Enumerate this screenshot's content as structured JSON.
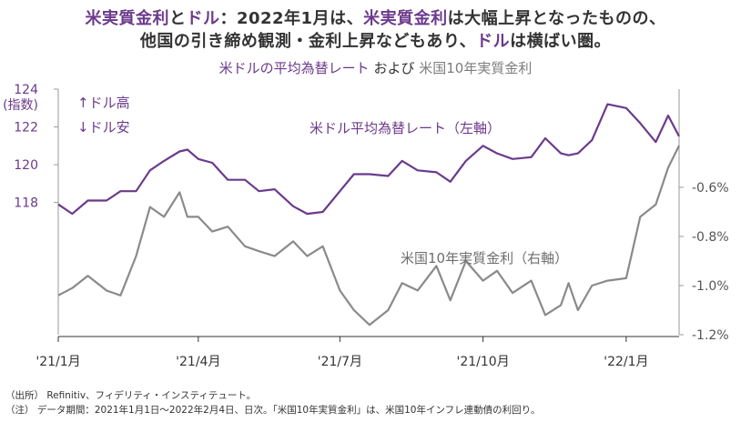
{
  "header": {
    "line1_a": "米実質金利",
    "line1_b": "と",
    "line1_c": "ドル",
    "line1_d": "：2022年1月は、",
    "line1_e": "米実質金利",
    "line1_f": "は大幅上昇となったものの、",
    "line2_a": "他国の引き締め観測・金利上昇などもあり、",
    "line2_b": "ドル",
    "line2_c": "は横ばい圏。"
  },
  "subtitle": {
    "part1": "米ドルの平均為替レート",
    "part2": " および ",
    "part3": "米国10年実質金利"
  },
  "chart_data": {
    "type": "line",
    "title": "",
    "left_axis": {
      "unit": "(指数)",
      "ticks": [
        118,
        120,
        122,
        124
      ],
      "range": [
        111,
        124
      ]
    },
    "right_axis": {
      "ticks": [
        "-0.6%",
        "-0.8%",
        "-1.0%",
        "-1.2%"
      ],
      "tick_values": [
        -0.6,
        -0.8,
        -1.0,
        -1.2
      ],
      "range": [
        -1.2,
        -0.2
      ]
    },
    "x_range": [
      "2021-01-01",
      "2022-02-04"
    ],
    "x_ticks": [
      {
        "label": "'21/1月",
        "date": "2021-01-01"
      },
      {
        "label": "'21/4月",
        "date": "2021-04-01"
      },
      {
        "label": "'21/7月",
        "date": "2021-07-01"
      },
      {
        "label": "'21/10月",
        "date": "2021-10-01"
      },
      {
        "label": "'22/1月",
        "date": "2022-01-01"
      }
    ],
    "legend": {
      "up": "↑ドル高",
      "down": "↓ドル安"
    },
    "annotations": {
      "usd": "米ドル平均為替レート（左軸）",
      "rate": "米国10年実質金利（右軸）"
    },
    "colors": {
      "usd": "#6b3a8c",
      "rate": "#8a8a8a"
    },
    "series": [
      {
        "name": "米ドル平均為替レート",
        "axis": "left",
        "x": [
          "2021-01-01",
          "2021-01-10",
          "2021-01-20",
          "2021-02-01",
          "2021-02-10",
          "2021-02-20",
          "2021-03-01",
          "2021-03-10",
          "2021-03-20",
          "2021-03-25",
          "2021-04-01",
          "2021-04-10",
          "2021-04-20",
          "2021-05-01",
          "2021-05-10",
          "2021-05-20",
          "2021-06-01",
          "2021-06-10",
          "2021-06-20",
          "2021-07-01",
          "2021-07-10",
          "2021-07-20",
          "2021-08-01",
          "2021-08-10",
          "2021-08-20",
          "2021-09-01",
          "2021-09-10",
          "2021-09-20",
          "2021-10-01",
          "2021-10-10",
          "2021-10-20",
          "2021-11-01",
          "2021-11-10",
          "2021-11-20",
          "2021-11-25",
          "2021-12-01",
          "2021-12-10",
          "2021-12-20",
          "2022-01-01",
          "2022-01-10",
          "2022-01-20",
          "2022-01-28",
          "2022-02-04"
        ],
        "values": [
          117.9,
          117.4,
          118.1,
          118.1,
          118.6,
          118.6,
          119.7,
          120.2,
          120.7,
          120.8,
          120.3,
          120.1,
          119.2,
          119.2,
          118.6,
          118.7,
          117.8,
          117.4,
          117.5,
          118.6,
          119.5,
          119.5,
          119.4,
          120.2,
          119.7,
          119.6,
          119.1,
          120.2,
          121.0,
          120.6,
          120.3,
          120.4,
          121.4,
          120.6,
          120.5,
          120.6,
          121.3,
          123.2,
          123.0,
          122.2,
          121.2,
          122.6,
          121.5
        ]
      },
      {
        "name": "米国10年実質金利",
        "axis": "right",
        "x": [
          "2021-01-01",
          "2021-01-10",
          "2021-01-20",
          "2021-02-01",
          "2021-02-10",
          "2021-02-20",
          "2021-03-01",
          "2021-03-10",
          "2021-03-20",
          "2021-03-25",
          "2021-04-01",
          "2021-04-10",
          "2021-04-20",
          "2021-05-01",
          "2021-05-10",
          "2021-05-20",
          "2021-06-01",
          "2021-06-10",
          "2021-06-20",
          "2021-07-01",
          "2021-07-10",
          "2021-07-20",
          "2021-08-01",
          "2021-08-10",
          "2021-08-20",
          "2021-09-01",
          "2021-09-10",
          "2021-09-20",
          "2021-10-01",
          "2021-10-10",
          "2021-10-20",
          "2021-11-01",
          "2021-11-10",
          "2021-11-20",
          "2021-11-25",
          "2021-12-01",
          "2021-12-10",
          "2021-12-20",
          "2022-01-01",
          "2022-01-10",
          "2022-01-20",
          "2022-01-28",
          "2022-02-04"
        ],
        "values": [
          -1.04,
          -1.01,
          -0.96,
          -1.02,
          -1.04,
          -0.88,
          -0.68,
          -0.72,
          -0.62,
          -0.72,
          -0.72,
          -0.78,
          -0.76,
          -0.84,
          -0.86,
          -0.88,
          -0.82,
          -0.88,
          -0.84,
          -1.02,
          -1.1,
          -1.16,
          -1.1,
          -0.99,
          -1.02,
          -0.92,
          -1.06,
          -0.9,
          -0.98,
          -0.94,
          -1.03,
          -0.98,
          -1.12,
          -1.08,
          -0.99,
          -1.1,
          -1.0,
          -0.98,
          -0.97,
          -0.72,
          -0.67,
          -0.52,
          -0.43
        ]
      }
    ]
  },
  "footer": {
    "source": "（出所） Refinitiv、フィデリティ・インスティテュート。",
    "note": "（注） データ期間：2021年1月1日～2022年2月4日、日次。「米国10年実質金利」は、米国10年インフレ連動債の利回り。"
  }
}
